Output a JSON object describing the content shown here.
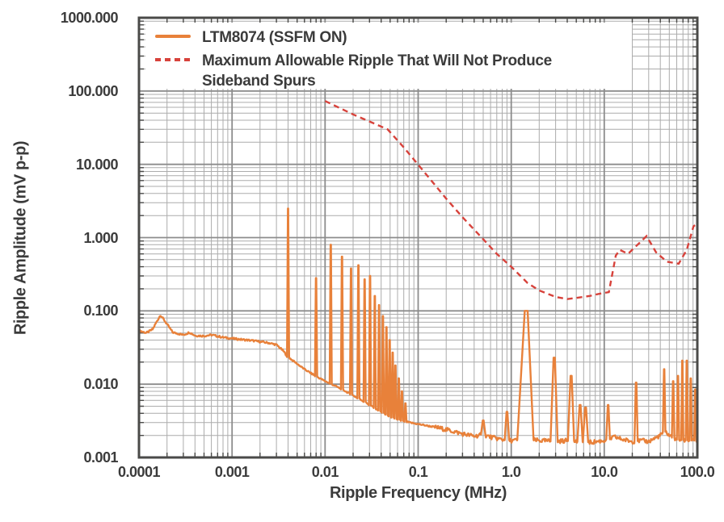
{
  "colors": {
    "orange": "#E8813A",
    "red": "#D7423B",
    "grid_minor": "#ACACAC",
    "grid_major": "#8C8C8C",
    "frame": "#4A4A48",
    "text": "#3B3B3B",
    "legend_background": "#FFFFFF"
  },
  "chart_data": {
    "type": "line",
    "title": "",
    "xlabel": "Ripple Frequency (MHz)",
    "ylabel": "Ripple Amplitude (mV p-p)",
    "x_scale": "log",
    "y_scale": "log",
    "xlim": [
      0.0001,
      100
    ],
    "ylim": [
      0.001,
      1000
    ],
    "x_tick_labels": [
      "0.0001",
      "0.001",
      "0.01",
      "0.1",
      "1.0",
      "10.0",
      "100.0"
    ],
    "y_tick_labels": [
      "1000.000",
      "100.000",
      "10.000",
      "1.000",
      "0.100",
      "0.010",
      "0.001"
    ],
    "grid": "log major and minor gridlines, gray, on",
    "legend_position": "upper-left",
    "series": [
      {
        "name": "LTM8074 (SSFM ON)",
        "style": "solid",
        "color_key": "orange",
        "baseline_points": [
          [
            0.0001,
            0.054
          ],
          [
            0.00012,
            0.05
          ],
          [
            0.00014,
            0.056
          ],
          [
            0.00017,
            0.088
          ],
          [
            0.0002,
            0.066
          ],
          [
            0.00023,
            0.051
          ],
          [
            0.0003,
            0.047
          ],
          [
            0.00035,
            0.051
          ],
          [
            0.0004,
            0.046
          ],
          [
            0.0005,
            0.0455
          ],
          [
            0.0006,
            0.047
          ],
          [
            0.0008,
            0.0435
          ],
          [
            0.001,
            0.042
          ],
          [
            0.0013,
            0.0405
          ],
          [
            0.0016,
            0.0395
          ],
          [
            0.002,
            0.038
          ],
          [
            0.0025,
            0.0365
          ],
          [
            0.003,
            0.0345
          ],
          [
            0.0035,
            0.029
          ],
          [
            0.004,
            0.0235
          ],
          [
            0.005,
            0.019
          ],
          [
            0.006,
            0.016
          ],
          [
            0.008,
            0.0128
          ],
          [
            0.01,
            0.011
          ],
          [
            0.013,
            0.0094
          ],
          [
            0.016,
            0.0082
          ],
          [
            0.02,
            0.007
          ],
          [
            0.025,
            0.006
          ],
          [
            0.03,
            0.0052
          ],
          [
            0.04,
            0.0042
          ],
          [
            0.05,
            0.0036
          ],
          [
            0.07,
            0.0031
          ],
          [
            0.1,
            0.00285
          ],
          [
            0.15,
            0.0026
          ],
          [
            0.2,
            0.0024
          ],
          [
            0.3,
            0.0021
          ],
          [
            0.4,
            0.00195
          ],
          [
            0.5,
            0.00205
          ],
          [
            0.6,
            0.0019
          ],
          [
            0.8,
            0.00175
          ],
          [
            1,
            0.0017
          ],
          [
            1.5,
            0.00175
          ],
          [
            2,
            0.0017
          ],
          [
            3,
            0.00165
          ],
          [
            4,
            0.0017
          ],
          [
            5,
            0.00165
          ],
          [
            7,
            0.0016
          ],
          [
            10,
            0.0017
          ],
          [
            13,
            0.0019
          ],
          [
            16,
            0.00175
          ],
          [
            20,
            0.00165
          ],
          [
            25,
            0.0017
          ],
          [
            30,
            0.00165
          ],
          [
            40,
            0.002
          ],
          [
            45,
            0.0023
          ],
          [
            50,
            0.002
          ],
          [
            60,
            0.00175
          ],
          [
            80,
            0.0017
          ],
          [
            100,
            0.0017
          ]
        ],
        "spikes": [
          [
            0.004,
            2.5,
            0.012
          ],
          [
            0.008,
            0.28,
            0.012
          ],
          [
            0.0115,
            0.8,
            0.012
          ],
          [
            0.0152,
            0.55,
            0.012
          ],
          [
            0.019,
            0.38,
            0.012
          ],
          [
            0.0228,
            0.42,
            0.012
          ],
          [
            0.0266,
            0.27,
            0.012
          ],
          [
            0.0304,
            0.3,
            0.012
          ],
          [
            0.0342,
            0.16,
            0.012
          ],
          [
            0.038,
            0.12,
            0.012
          ],
          [
            0.0418,
            0.085,
            0.012
          ],
          [
            0.0456,
            0.06,
            0.012
          ],
          [
            0.0494,
            0.04,
            0.012
          ],
          [
            0.0532,
            0.027,
            0.012
          ],
          [
            0.057,
            0.018,
            0.012
          ],
          [
            0.062,
            0.012,
            0.012
          ],
          [
            0.067,
            0.008,
            0.012
          ],
          [
            0.073,
            0.0055,
            0.012
          ],
          [
            0.5,
            0.0032,
            0.025
          ],
          [
            0.9,
            0.0042,
            0.025
          ],
          [
            1.45,
            0.1,
            0.09
          ],
          [
            2.9,
            0.023,
            0.04
          ],
          [
            4.4,
            0.013,
            0.035
          ],
          [
            5.5,
            0.0052,
            0.03
          ],
          [
            6.3,
            0.0048,
            0.03
          ],
          [
            11,
            0.0052,
            0.02
          ],
          [
            22,
            0.0105,
            0.018
          ],
          [
            44,
            0.016,
            0.014
          ],
          [
            55,
            0.011,
            0.014
          ],
          [
            62,
            0.013,
            0.013
          ],
          [
            69,
            0.021,
            0.012
          ],
          [
            77,
            0.021,
            0.012
          ],
          [
            85,
            0.012,
            0.012
          ],
          [
            95,
            0.0085,
            0.012
          ]
        ]
      },
      {
        "name": "Maximum Allowable Ripple That Will Not Produce Sideband Spurs",
        "style": "dashed",
        "color_key": "red",
        "points": [
          [
            0.01,
            73
          ],
          [
            0.02,
            48
          ],
          [
            0.047,
            30
          ],
          [
            0.07,
            17
          ],
          [
            0.105,
            9.2
          ],
          [
            0.15,
            5.3
          ],
          [
            0.2,
            3.4
          ],
          [
            0.3,
            1.9
          ],
          [
            0.5,
            0.95
          ],
          [
            0.7,
            0.6
          ],
          [
            1,
            0.4
          ],
          [
            1.5,
            0.24
          ],
          [
            2,
            0.19
          ],
          [
            3,
            0.155
          ],
          [
            4,
            0.145
          ],
          [
            5,
            0.15
          ],
          [
            7,
            0.16
          ],
          [
            8.6,
            0.17
          ],
          [
            11.2,
            0.18
          ],
          [
            13.3,
            0.57
          ],
          [
            14.7,
            0.68
          ],
          [
            18,
            0.6
          ],
          [
            28.5,
            1.05
          ],
          [
            36,
            0.63
          ],
          [
            47,
            0.47
          ],
          [
            63,
            0.44
          ],
          [
            77,
            0.68
          ],
          [
            91,
            1.43
          ],
          [
            100,
            1.55
          ]
        ]
      }
    ]
  }
}
